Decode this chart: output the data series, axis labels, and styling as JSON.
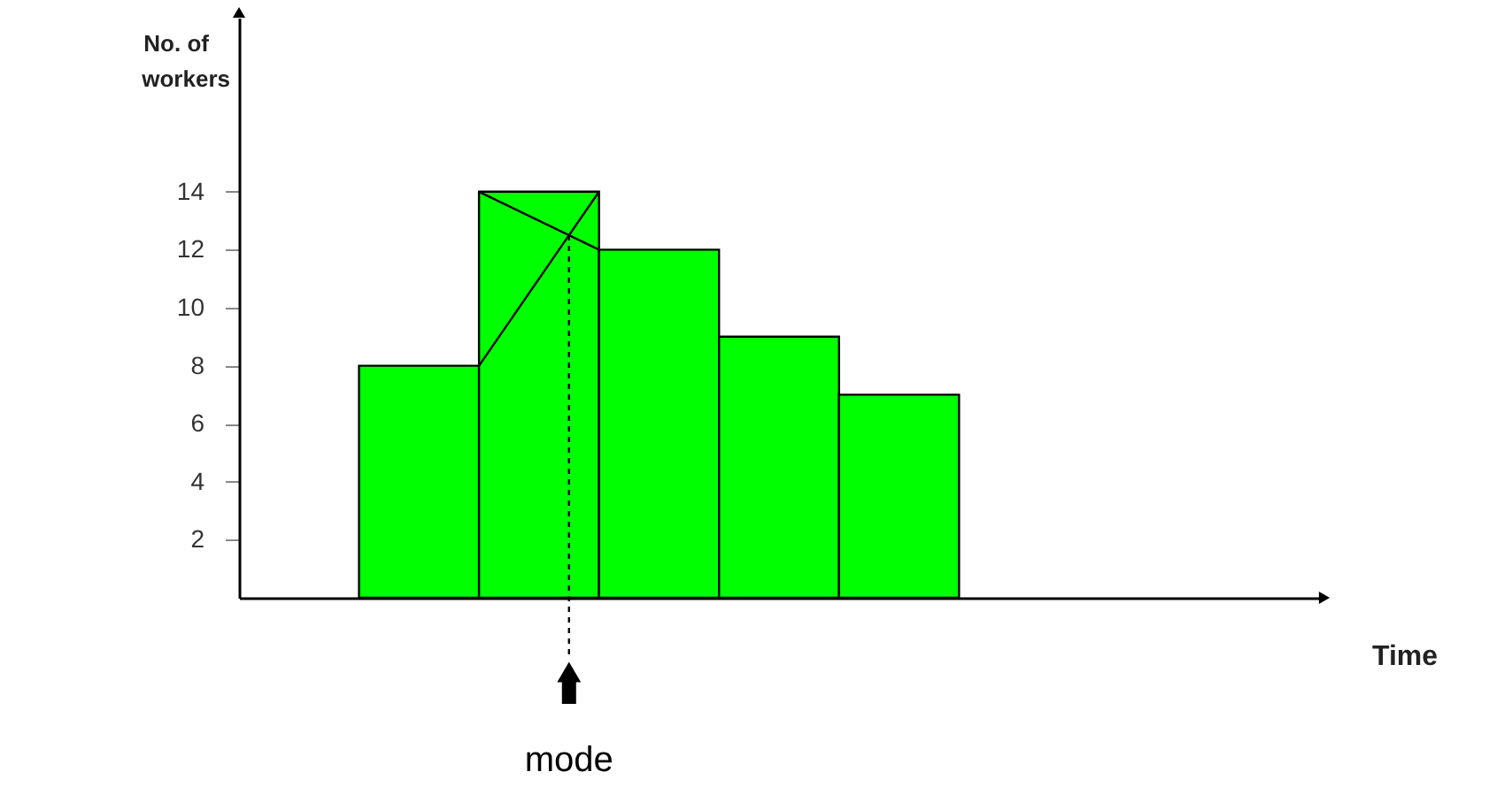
{
  "chart_data": {
    "type": "bar",
    "xlabel": "Time",
    "ylabel": "No. of workers",
    "categories": [
      null,
      null,
      null,
      null,
      null,
      null,
      null,
      null,
      null
    ],
    "values": [
      null,
      8,
      14,
      12,
      9,
      7,
      null,
      null,
      null
    ],
    "color": "#00ff00",
    "ylim": [
      0,
      20
    ],
    "yticks": [
      2,
      4,
      6,
      8,
      10,
      12,
      14
    ],
    "grid": false,
    "annotations": [
      "mode"
    ]
  }
}
